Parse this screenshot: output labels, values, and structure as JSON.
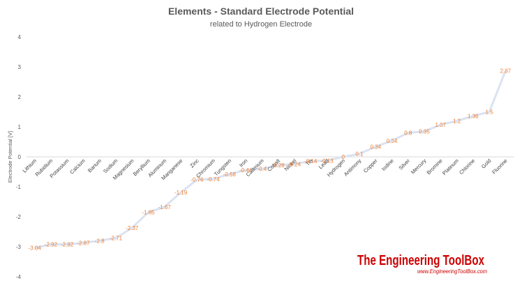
{
  "chart_data": {
    "type": "line",
    "title": "Elements - Standard Electrode Potential",
    "subtitle": "related to Hydrogen Electrode",
    "ylabel": "Electrode Potential [V]",
    "xlabel": "",
    "ylim": [
      -4,
      4
    ],
    "yticks": [
      4,
      3,
      2,
      1,
      0,
      -1,
      -2,
      -3,
      -4
    ],
    "grid": false,
    "legend": "none",
    "categories": [
      "Lithium",
      "Rubidium",
      "Potassium",
      "Calcium",
      "Barium",
      "Sodium",
      "Magnesium",
      "Beryllium",
      "Aluminum",
      "Manganese",
      "Zinc",
      "Chromium",
      "Tungsten",
      "Iron",
      "Cadmium",
      "Cobalt",
      "Nickel",
      "Tin",
      "Lead",
      "Hydrogen",
      "Antimony",
      "Copper",
      "Iodine",
      "Silver",
      "Mercury",
      "Bromine",
      "Platinum",
      "Chlorine",
      "Gold",
      "Fluorine"
    ],
    "values": [
      -3.04,
      -2.92,
      -2.92,
      -2.87,
      -2.8,
      -2.71,
      -2.37,
      -1.85,
      -1.67,
      -1.19,
      -0.76,
      -0.74,
      -0.58,
      -0.44,
      -0.4,
      -0.28,
      -0.24,
      -0.14,
      -0.13,
      0,
      0.1,
      0.34,
      0.54,
      0.8,
      0.85,
      1.07,
      1.2,
      1.36,
      1.5,
      2.87
    ],
    "data_labels": [
      "-3.04",
      "-2.92",
      "-2.92",
      "-2.87",
      "-2.8",
      "-2.71",
      "-2.37",
      "-1.85",
      "-1.67",
      "-1.19",
      "-0.76",
      "-0.74",
      "-0.58",
      "-0.44",
      "-0.4",
      "-0.28",
      "-0.24",
      "-0.14",
      "-0.13",
      "0",
      "0.1",
      "0.34",
      "0.54",
      "0.8",
      "0.85",
      "1.07",
      "1.2",
      "1.36",
      "1.5",
      "2.87"
    ],
    "colors": {
      "line": "#DAE3F3",
      "label": "#ED7D31",
      "axis": "#D9D9D9",
      "text": "#595959"
    }
  },
  "watermark": {
    "main": "The Engineering ToolBox",
    "sub": "www.EngineeringToolBox.com"
  }
}
